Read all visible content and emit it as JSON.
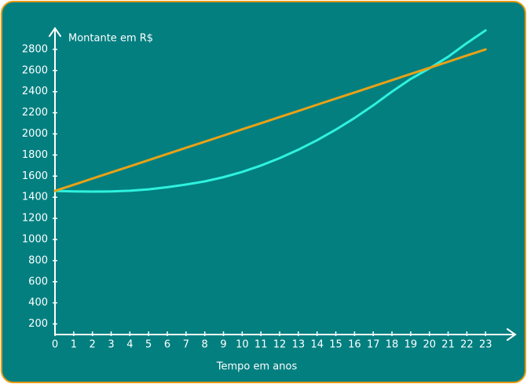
{
  "chart_data": {
    "type": "line",
    "y_label": "Montante em R$",
    "x_label": "Tempo em anos",
    "x": [
      0,
      1,
      2,
      3,
      4,
      5,
      6,
      7,
      8,
      9,
      10,
      11,
      12,
      13,
      14,
      15,
      16,
      17,
      18,
      19,
      20,
      21,
      22,
      23
    ],
    "series": [
      {
        "color": "#2ef2de",
        "values": [
          1460,
          1455,
          1453,
          1455,
          1462,
          1475,
          1495,
          1520,
          1550,
          1590,
          1640,
          1700,
          1770,
          1850,
          1940,
          2040,
          2150,
          2270,
          2400,
          2520,
          2620,
          2730,
          2860,
          2980
        ]
      },
      {
        "color": "#e8a216",
        "values": [
          1460,
          1518,
          1577,
          1635,
          1693,
          1751,
          1810,
          1868,
          1926,
          1984,
          2043,
          2101,
          2159,
          2217,
          2276,
          2334,
          2392,
          2450,
          2509,
          2567,
          2625,
          2683,
          2742,
          2800
        ]
      }
    ],
    "xlim": [
      0,
      24.5
    ],
    "ylim": [
      100,
      3000
    ],
    "xticks": [
      0,
      1,
      2,
      3,
      4,
      5,
      6,
      7,
      8,
      9,
      10,
      11,
      12,
      13,
      14,
      15,
      16,
      17,
      18,
      19,
      20,
      21,
      22,
      23
    ],
    "yticks": [
      200,
      400,
      600,
      800,
      1000,
      1200,
      1400,
      1600,
      1800,
      2000,
      2200,
      2400,
      2600,
      2800
    ]
  }
}
